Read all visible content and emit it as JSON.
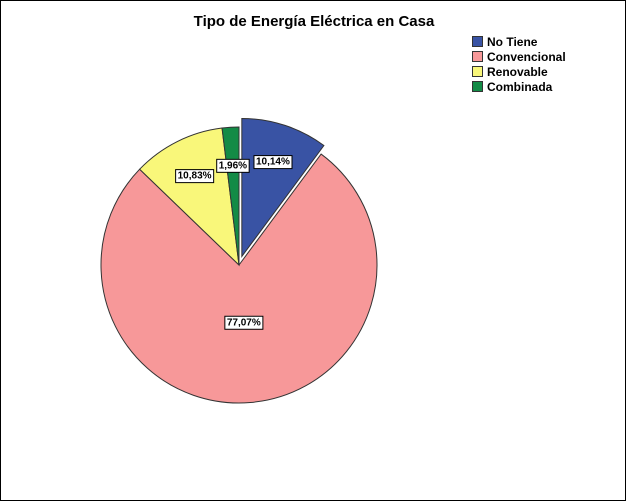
{
  "chart_data": {
    "type": "pie",
    "title": "Tipo de Energía Eléctrica en Casa",
    "categories": [
      "No Tiene",
      "Convencional",
      "Renovable",
      "Combinada"
    ],
    "values": [
      10.14,
      77.07,
      10.83,
      1.96
    ],
    "data_labels": [
      "10,14%",
      "77,07%",
      "10,83%",
      "1,96%"
    ],
    "colors": [
      "#3953a4",
      "#f79899",
      "#f9f77a",
      "#138b46"
    ],
    "exploded": [
      true,
      false,
      false,
      false
    ],
    "legend_position": "top-right"
  }
}
